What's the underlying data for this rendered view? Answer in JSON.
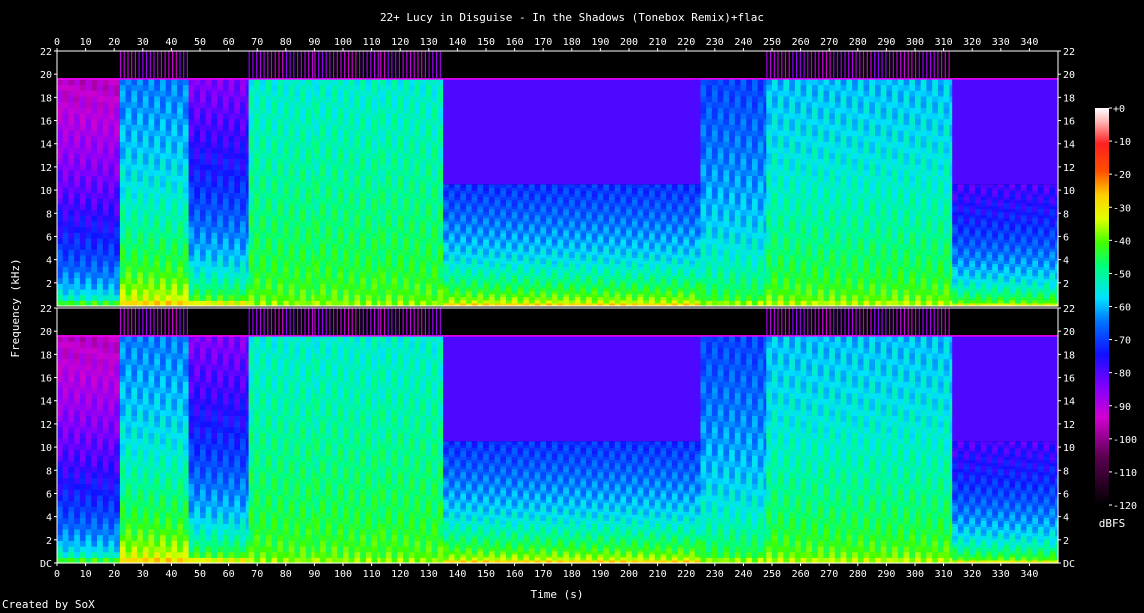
{
  "chart_data": {
    "type": "heatmap",
    "title": "22+ Lucy in Disguise - In the Shadows (Tonebox Remix)+flac",
    "xlabel": "Time (s)",
    "ylabel": "Frequency (kHz)",
    "colorbar_label": "dBFS",
    "credit": "Created by SoX",
    "xlim": [
      0,
      350
    ],
    "ylim": [
      0,
      22
    ],
    "x_ticks": [
      0,
      10,
      20,
      30,
      40,
      50,
      60,
      70,
      80,
      90,
      100,
      110,
      120,
      130,
      140,
      150,
      160,
      170,
      180,
      190,
      200,
      210,
      220,
      230,
      240,
      250,
      260,
      270,
      280,
      290,
      300,
      310,
      320,
      330,
      340
    ],
    "y_ticks": [
      {
        "v": 0,
        "label": "DC"
      },
      {
        "v": 2,
        "label": "2"
      },
      {
        "v": 4,
        "label": "4"
      },
      {
        "v": 6,
        "label": "6"
      },
      {
        "v": 8,
        "label": "8"
      },
      {
        "v": 10,
        "label": "10"
      },
      {
        "v": 12,
        "label": "12"
      },
      {
        "v": 14,
        "label": "14"
      },
      {
        "v": 16,
        "label": "16"
      },
      {
        "v": 18,
        "label": "18"
      },
      {
        "v": 20,
        "label": "20"
      },
      {
        "v": 22,
        "label": "22"
      }
    ],
    "upper_channel_y_ticks": [
      {
        "v": 2,
        "label": "2"
      },
      {
        "v": 4,
        "label": "4"
      },
      {
        "v": 6,
        "label": "6"
      },
      {
        "v": 8,
        "label": "8"
      },
      {
        "v": 10,
        "label": "10"
      },
      {
        "v": 12,
        "label": "12"
      },
      {
        "v": 14,
        "label": "14"
      },
      {
        "v": 16,
        "label": "16"
      },
      {
        "v": 18,
        "label": "18"
      },
      {
        "v": 20,
        "label": "20"
      },
      {
        "v": 22,
        "label": "22"
      }
    ],
    "colorbar_ticks": [
      {
        "v": 0,
        "label": "+0"
      },
      {
        "v": -10,
        "label": "-10"
      },
      {
        "v": -20,
        "label": "-20"
      },
      {
        "v": -30,
        "label": "-30"
      },
      {
        "v": -40,
        "label": "-40"
      },
      {
        "v": -50,
        "label": "-50"
      },
      {
        "v": -60,
        "label": "-60"
      },
      {
        "v": -70,
        "label": "-70"
      },
      {
        "v": -80,
        "label": "-80"
      },
      {
        "v": -90,
        "label": "-90"
      },
      {
        "v": -100,
        "label": "-100"
      },
      {
        "v": -110,
        "label": "-110"
      },
      {
        "v": -120,
        "label": "-120"
      }
    ],
    "colorbar_range": [
      -120,
      0
    ],
    "colors": {
      "bg": "#000000",
      "text": "#ffffff",
      "axis": "#ffffff",
      "cutoff_line": "#ff00ff"
    },
    "cutoff_khz": 19.6,
    "channels": 2,
    "segments": [
      {
        "start": 0,
        "end": 22,
        "intensity": -95,
        "top_khz": 19.6,
        "bass": -45
      },
      {
        "start": 22,
        "end": 46,
        "intensity": -65,
        "top_khz": 19.6,
        "bass": -30
      },
      {
        "start": 46,
        "end": 67,
        "intensity": -85,
        "top_khz": 19.6,
        "bass": -35
      },
      {
        "start": 67,
        "end": 90,
        "intensity": -55,
        "top_khz": 19.6,
        "bass": -40
      },
      {
        "start": 90,
        "end": 113,
        "intensity": -55,
        "top_khz": 19.6,
        "bass": -40
      },
      {
        "start": 113,
        "end": 135,
        "intensity": -55,
        "top_khz": 19.6,
        "bass": -40
      },
      {
        "start": 135,
        "end": 225,
        "intensity": -72,
        "top_khz": 10.5,
        "bass": -30
      },
      {
        "start": 225,
        "end": 248,
        "intensity": -70,
        "top_khz": 19.6,
        "bass": -40
      },
      {
        "start": 248,
        "end": 313,
        "intensity": -60,
        "top_khz": 19.6,
        "bass": -38
      },
      {
        "start": 313,
        "end": 350,
        "intensity": -80,
        "top_khz": 10.5,
        "bass": -35
      }
    ]
  }
}
